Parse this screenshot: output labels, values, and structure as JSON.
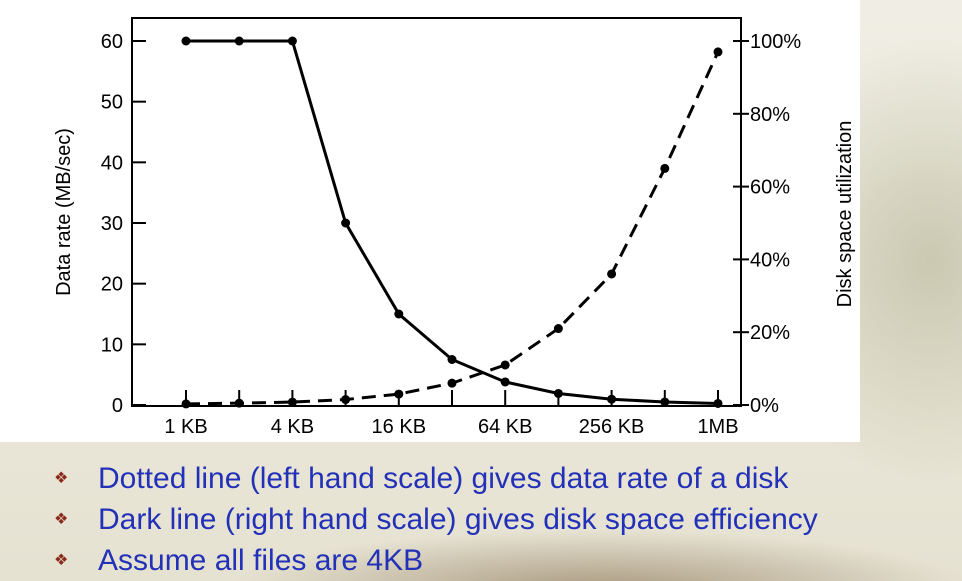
{
  "chart_data": {
    "type": "line",
    "x_ticks": [
      "1 KB",
      "",
      "4 KB",
      "",
      "16 KB",
      "",
      "64 KB",
      "",
      "256 KB",
      "",
      "1MB"
    ],
    "left_axis": {
      "label": "Data rate (MB/sec)",
      "range": [
        0,
        60
      ],
      "ticks": [
        "0",
        "10",
        "20",
        "30",
        "40",
        "50",
        "60"
      ]
    },
    "right_axis": {
      "label": "Disk space utilization",
      "range": [
        0,
        100
      ],
      "ticks": [
        "0%",
        "20%",
        "40%",
        "60%",
        "80%",
        "100%"
      ]
    },
    "series": [
      {
        "style": "solid",
        "axis": "left",
        "values": [
          60,
          60,
          60,
          30,
          15,
          7.5,
          3.8,
          1.9,
          0.95,
          0.5,
          0.25
        ]
      },
      {
        "style": "dashed",
        "axis": "right",
        "values": [
          0.3,
          0.5,
          0.8,
          1.5,
          3,
          6,
          11,
          21,
          36,
          65,
          97
        ]
      }
    ],
    "grid": false
  },
  "bullets": [
    "Dotted line (left hand scale) gives data rate of a disk",
    "Dark line (right hand scale) gives disk space efficiency",
    "Assume all files are 4KB"
  ],
  "colors": {
    "bullet_text": "#2231b8",
    "bullet_marker": "#8a2a1a"
  }
}
